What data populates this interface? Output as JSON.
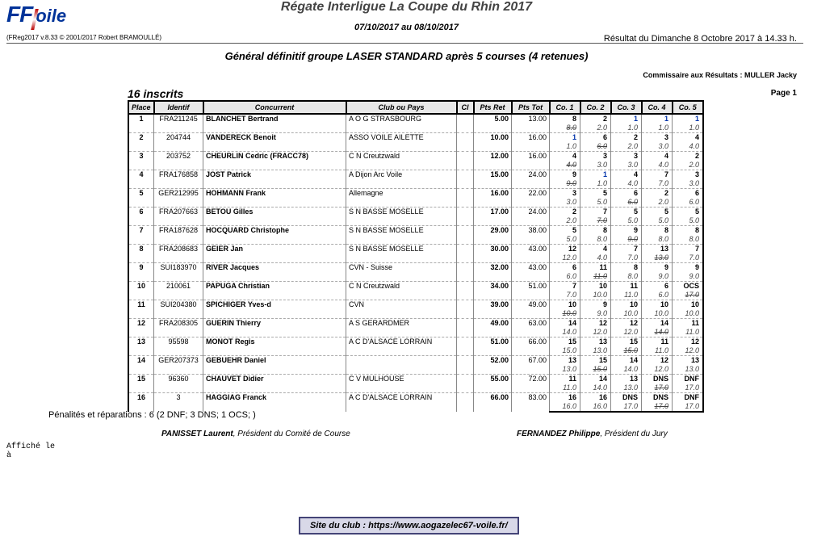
{
  "header": {
    "logo_ff": "FF",
    "logo_voile": "oile",
    "event_title": "Régate Interligue La Coupe du Rhin 2017",
    "event_dates": "07/10/2017 au 08/10/2017",
    "freg": "(FReg2017 v.8.33 © 2001/2017 Robert BRAMOULLÉ)",
    "result_time": "Résultat du Dimanche 8 Octobre 2017 à 14.33 h.",
    "subtitle": "Général définitif groupe LASER STANDARD après 5 courses (4 retenues)",
    "commissaire": "Commissaire aux Résultats : MULLER Jacky",
    "inscrits": "16 inscrits",
    "page": "Page 1"
  },
  "cols": {
    "place": "Place",
    "ident": "Identif",
    "name": "Concurrent",
    "club": "Club  ou  Pays",
    "cl": "Cl",
    "pret": "Pts Ret",
    "ptot": "Pts Tot",
    "c1": "Co. 1",
    "c2": "Co. 2",
    "c3": "Co. 3",
    "c4": "Co. 4",
    "c5": "Co. 5"
  },
  "rows": [
    {
      "p": "1",
      "id": "FRA211245",
      "n": "BLANCHET Bertrand",
      "cl": "A O G STRASBOURG",
      "pr": "5.00",
      "pt": "13.00",
      "t": [
        "8",
        "2",
        "1",
        "1",
        "1"
      ],
      "tb": [
        false,
        false,
        true,
        true,
        true
      ],
      "ts": [
        false,
        false,
        false,
        false,
        false
      ],
      "b": [
        "8.0",
        "2.0",
        "1.0",
        "1.0",
        "1.0"
      ],
      "bs": [
        true,
        false,
        false,
        false,
        false
      ]
    },
    {
      "p": "2",
      "id": "204744",
      "n": "VANDERECK Benoit",
      "cl": "ASSO VOILE AILETTE",
      "pr": "10.00",
      "pt": "16.00",
      "t": [
        "1",
        "6",
        "2",
        "3",
        "4"
      ],
      "tb": [
        true,
        false,
        false,
        false,
        false
      ],
      "ts": [
        false,
        false,
        false,
        false,
        false
      ],
      "b": [
        "1.0",
        "6.0",
        "2.0",
        "3.0",
        "4.0"
      ],
      "bs": [
        false,
        true,
        false,
        false,
        false
      ]
    },
    {
      "p": "3",
      "id": "203752",
      "n": "CHEURLIN Cedric (FRACC78)",
      "cl": "C N Creutzwald",
      "pr": "12.00",
      "pt": "16.00",
      "t": [
        "4",
        "3",
        "3",
        "4",
        "2"
      ],
      "tb": [
        false,
        false,
        false,
        false,
        false
      ],
      "ts": [
        false,
        false,
        false,
        false,
        false
      ],
      "b": [
        "4.0",
        "3.0",
        "3.0",
        "4.0",
        "2.0"
      ],
      "bs": [
        true,
        false,
        false,
        false,
        false
      ]
    },
    {
      "p": "4",
      "id": "FRA176858",
      "n": "JOST Patrick",
      "cl": "A Dijon Arc Voile",
      "pr": "15.00",
      "pt": "24.00",
      "t": [
        "9",
        "1",
        "4",
        "7",
        "3"
      ],
      "tb": [
        false,
        true,
        false,
        false,
        false
      ],
      "ts": [
        false,
        false,
        false,
        false,
        false
      ],
      "b": [
        "9.0",
        "1.0",
        "4.0",
        "7.0",
        "3.0"
      ],
      "bs": [
        true,
        false,
        false,
        false,
        false
      ]
    },
    {
      "p": "5",
      "id": "GER212995",
      "n": "HOHMANN Frank",
      "cl": "Allemagne",
      "pr": "16.00",
      "pt": "22.00",
      "t": [
        "3",
        "5",
        "6",
        "2",
        "6"
      ],
      "tb": [
        false,
        false,
        false,
        false,
        false
      ],
      "ts": [
        false,
        false,
        false,
        false,
        false
      ],
      "b": [
        "3.0",
        "5.0",
        "6.0",
        "2.0",
        "6.0"
      ],
      "bs": [
        false,
        false,
        true,
        false,
        false
      ]
    },
    {
      "p": "6",
      "id": "FRA207663",
      "n": "BETOU Gilles",
      "cl": "S N BASSE MOSELLE",
      "pr": "17.00",
      "pt": "24.00",
      "t": [
        "2",
        "7",
        "5",
        "5",
        "5"
      ],
      "tb": [
        false,
        false,
        false,
        false,
        false
      ],
      "ts": [
        false,
        false,
        false,
        false,
        false
      ],
      "b": [
        "2.0",
        "7.0",
        "5.0",
        "5.0",
        "5.0"
      ],
      "bs": [
        false,
        true,
        false,
        false,
        false
      ]
    },
    {
      "p": "7",
      "id": "FRA187628",
      "n": "HOCQUARD Christophe",
      "cl": "S N BASSE MOSELLE",
      "pr": "29.00",
      "pt": "38.00",
      "t": [
        "5",
        "8",
        "9",
        "8",
        "8"
      ],
      "tb": [
        false,
        false,
        false,
        false,
        false
      ],
      "ts": [
        false,
        false,
        false,
        false,
        false
      ],
      "b": [
        "5.0",
        "8.0",
        "9.0",
        "8.0",
        "8.0"
      ],
      "bs": [
        false,
        false,
        true,
        false,
        false
      ]
    },
    {
      "p": "8",
      "id": "FRA208683",
      "n": "GEIER Jan",
      "cl": "S N BASSE MOSELLE",
      "pr": "30.00",
      "pt": "43.00",
      "t": [
        "12",
        "4",
        "7",
        "13",
        "7"
      ],
      "tb": [
        false,
        false,
        false,
        false,
        false
      ],
      "ts": [
        false,
        false,
        false,
        false,
        false
      ],
      "b": [
        "12.0",
        "4.0",
        "7.0",
        "13.0",
        "7.0"
      ],
      "bs": [
        false,
        false,
        false,
        true,
        false
      ]
    },
    {
      "p": "9",
      "id": "SUI183970",
      "n": "RIVER Jacques",
      "cl": "CVN - Suisse",
      "pr": "32.00",
      "pt": "43.00",
      "t": [
        "6",
        "11",
        "8",
        "9",
        "9"
      ],
      "tb": [
        false,
        false,
        false,
        false,
        false
      ],
      "ts": [
        false,
        false,
        false,
        false,
        false
      ],
      "b": [
        "6.0",
        "11.0",
        "8.0",
        "9.0",
        "9.0"
      ],
      "bs": [
        false,
        true,
        false,
        false,
        false
      ]
    },
    {
      "p": "10",
      "id": "210061",
      "n": "PAPUGA Christian",
      "cl": "C N Creutzwald",
      "pr": "34.00",
      "pt": "51.00",
      "t": [
        "7",
        "10",
        "11",
        "6",
        "OCS"
      ],
      "tb": [
        false,
        false,
        false,
        false,
        false
      ],
      "ts": [
        false,
        false,
        false,
        false,
        false
      ],
      "b": [
        "7.0",
        "10.0",
        "11.0",
        "6.0",
        "17.0"
      ],
      "bs": [
        false,
        false,
        false,
        false,
        true
      ]
    },
    {
      "p": "11",
      "id": "SUI204380",
      "n": "SPICHIGER Yves-d",
      "cl": "CVN",
      "pr": "39.00",
      "pt": "49.00",
      "t": [
        "10",
        "9",
        "10",
        "10",
        "10"
      ],
      "tb": [
        false,
        false,
        false,
        false,
        false
      ],
      "ts": [
        false,
        false,
        false,
        false,
        false
      ],
      "b": [
        "10.0",
        "9.0",
        "10.0",
        "10.0",
        "10.0"
      ],
      "bs": [
        true,
        false,
        false,
        false,
        false
      ]
    },
    {
      "p": "12",
      "id": "FRA208305",
      "n": "GUERIN Thierry",
      "cl": "A S GERARDMER",
      "pr": "49.00",
      "pt": "63.00",
      "t": [
        "14",
        "12",
        "12",
        "14",
        "11"
      ],
      "tb": [
        false,
        false,
        false,
        false,
        false
      ],
      "ts": [
        false,
        false,
        false,
        false,
        false
      ],
      "b": [
        "14.0",
        "12.0",
        "12.0",
        "14.0",
        "11.0"
      ],
      "bs": [
        false,
        false,
        false,
        true,
        false
      ]
    },
    {
      "p": "13",
      "id": "95598",
      "n": "MONOT Regis",
      "cl": "A C D'ALSACE LORRAIN",
      "pr": "51.00",
      "pt": "66.00",
      "t": [
        "15",
        "13",
        "15",
        "11",
        "12"
      ],
      "tb": [
        false,
        false,
        false,
        false,
        false
      ],
      "ts": [
        false,
        false,
        false,
        false,
        false
      ],
      "b": [
        "15.0",
        "13.0",
        "15.0",
        "11.0",
        "12.0"
      ],
      "bs": [
        false,
        false,
        true,
        false,
        false
      ]
    },
    {
      "p": "14",
      "id": "GER207373",
      "n": "GEBUEHR Daniel",
      "cl": "",
      "pr": "52.00",
      "pt": "67.00",
      "t": [
        "13",
        "15",
        "14",
        "12",
        "13"
      ],
      "tb": [
        false,
        false,
        false,
        false,
        false
      ],
      "ts": [
        false,
        false,
        false,
        false,
        false
      ],
      "b": [
        "13.0",
        "15.0",
        "14.0",
        "12.0",
        "13.0"
      ],
      "bs": [
        false,
        true,
        false,
        false,
        false
      ]
    },
    {
      "p": "15",
      "id": "96360",
      "n": "CHAUVET Didier",
      "cl": "C V MULHOUSE",
      "pr": "55.00",
      "pt": "72.00",
      "t": [
        "11",
        "14",
        "13",
        "DNS",
        "DNF"
      ],
      "tb": [
        false,
        false,
        false,
        false,
        false
      ],
      "ts": [
        false,
        false,
        false,
        false,
        false
      ],
      "b": [
        "11.0",
        "14.0",
        "13.0",
        "17.0",
        "17.0"
      ],
      "bs": [
        false,
        false,
        false,
        true,
        false
      ]
    },
    {
      "p": "16",
      "id": "3",
      "n": "HAGGIAG Franck",
      "cl": "A C D'ALSACE LORRAIN",
      "pr": "66.00",
      "pt": "83.00",
      "t": [
        "16",
        "16",
        "DNS",
        "DNS",
        "DNF"
      ],
      "tb": [
        false,
        false,
        false,
        false,
        false
      ],
      "ts": [
        false,
        false,
        false,
        false,
        false
      ],
      "b": [
        "16.0",
        "16.0",
        "17.0",
        "17.0",
        "17.0"
      ],
      "bs": [
        false,
        false,
        false,
        true,
        false
      ]
    }
  ],
  "footer": {
    "penal": "Pénalités et réparations : 6 (2 DNF; 3 DNS; 1 OCS; )",
    "sig_left_name": "PANISSET Laurent",
    "sig_left_role": ", Président du Comité de Course",
    "sig_right_name": "FERNANDEZ Philippe",
    "sig_right_role": ", Président du Jury",
    "affiche1": "Affiché le",
    "affiche2": "        à",
    "site": "Site du club : https://www.aogazelec67-voile.fr/"
  }
}
